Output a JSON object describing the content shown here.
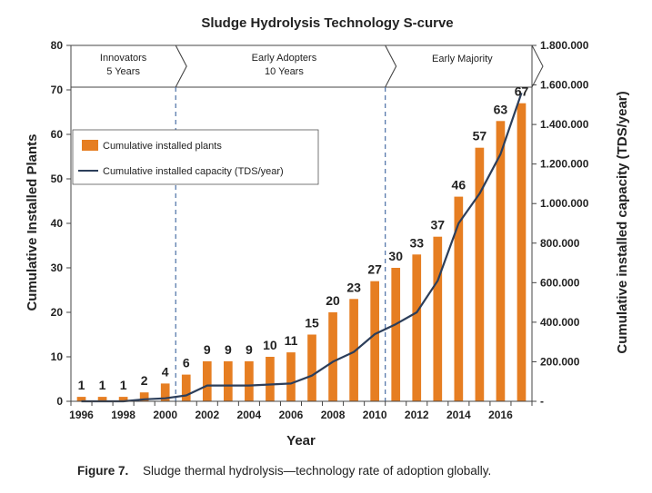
{
  "chart_data": {
    "type": "bar",
    "title": "Sludge Hydrolysis Technology S-curve",
    "xlabel": "Year",
    "ylabel": "Cumulative Installed Plants",
    "y2label": "Cumulative installed capacity (TDS/year)",
    "ylim": [
      0,
      80
    ],
    "y2lim": [
      0,
      1800000
    ],
    "yticks": [
      "0",
      "10",
      "20",
      "30",
      "40",
      "50",
      "60",
      "70",
      "80"
    ],
    "y2ticks": [
      "-",
      "200.000",
      "400.000",
      "600.000",
      "800.000",
      "1.000.000",
      "1.200.000",
      "1.400.000",
      "1.600.000",
      "1.800.000"
    ],
    "xticks": [
      "1996",
      "1998",
      "2000",
      "2002",
      "2004",
      "2006",
      "2008",
      "2010",
      "2012",
      "2014",
      "2016"
    ],
    "categories": [
      "1996",
      "1997",
      "1998",
      "1999",
      "2000",
      "2001",
      "2002",
      "2003",
      "2004",
      "2005",
      "2006",
      "2007",
      "2008",
      "2009",
      "2010",
      "2011",
      "2012",
      "2013",
      "2014",
      "2015",
      "2016",
      "2017"
    ],
    "series": [
      {
        "name": "Cumulative installed plants",
        "kind": "bar",
        "axis": "left",
        "color": "#E67E22",
        "values": [
          1,
          1,
          1,
          2,
          4,
          6,
          9,
          9,
          9,
          10,
          11,
          15,
          20,
          23,
          27,
          30,
          33,
          37,
          46,
          57,
          63,
          67
        ],
        "labels": [
          "1",
          "1",
          "1",
          "2",
          "4",
          "6",
          "9",
          "9",
          "9",
          "10",
          "11",
          "15",
          "20",
          "23",
          "27",
          "30",
          "33",
          "37",
          "46",
          "57",
          "63",
          "67"
        ]
      },
      {
        "name": "Cumulative installed capacity (TDS/year)",
        "kind": "line",
        "axis": "right",
        "color": "#2C3E5A",
        "values": [
          0,
          0,
          0,
          10000,
          15000,
          30000,
          80000,
          80000,
          80000,
          85000,
          90000,
          130000,
          200000,
          250000,
          340000,
          390000,
          450000,
          610000,
          900000,
          1050000,
          1250000,
          1560000
        ]
      }
    ],
    "phases": [
      {
        "name": "Innovators",
        "duration": "5 Years"
      },
      {
        "name": "Early Adopters",
        "duration": "10 Years"
      },
      {
        "name": "Early Majority",
        "duration": ""
      }
    ],
    "legend_position": "upper-left",
    "grid": false
  },
  "caption": {
    "label": "Figure 7.",
    "text": "Sludge thermal hydrolysis—technology rate of adoption globally."
  }
}
